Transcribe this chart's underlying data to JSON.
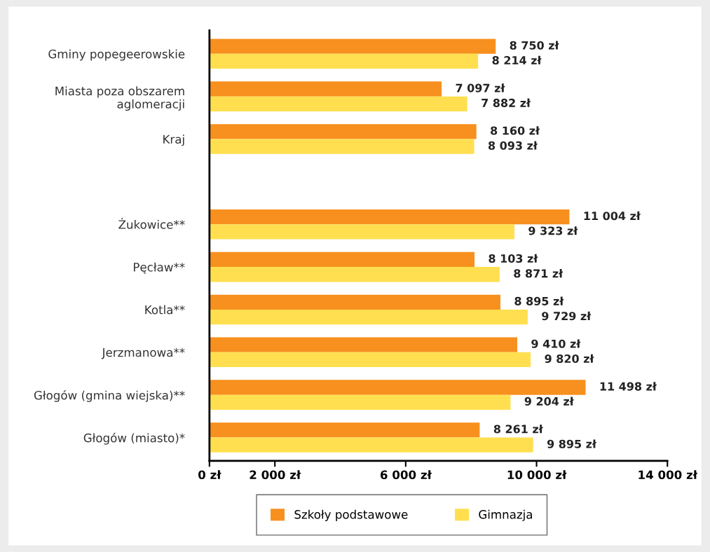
{
  "chart_data": {
    "type": "bar",
    "orientation": "horizontal",
    "categories": [
      "Gminy popegeerowskie",
      "Miasta poza obszarem\naglomeracji",
      "Kraj",
      null,
      "Żukowice**",
      "Pęcław**",
      "Kotla**",
      "Jerzmanowa**",
      "Głogów (gmina wiejska)**",
      "Głogów (miasto)*"
    ],
    "series": [
      {
        "name": "Szkoły podstawowe",
        "color": "#f7901e",
        "values": [
          8750,
          7097,
          8160,
          null,
          11004,
          8103,
          8895,
          9410,
          11498,
          8261
        ],
        "value_labels": [
          "8 750 zł",
          "7 097 zł",
          "8 160 zł",
          null,
          "11 004 zł",
          "8 103 zł",
          "8 895 zł",
          "9 410 zł",
          "11 498 zł",
          "8 261 zł"
        ]
      },
      {
        "name": "Gimnazja",
        "color": "#ffdf4f",
        "values": [
          8214,
          7882,
          8093,
          null,
          9323,
          8871,
          9729,
          9820,
          9204,
          9895
        ],
        "value_labels": [
          "8 214 zł",
          "7 882 zł",
          "8 093 zł",
          null,
          "9 323 zł",
          "8 871 zł",
          "9 729 zł",
          "9 820 zł",
          "9 204 zł",
          "9 895 zł"
        ]
      }
    ],
    "xlim": [
      0,
      14000
    ],
    "xticks": [
      {
        "value": 0,
        "label": "0 zł"
      },
      {
        "value": 2000,
        "label": "2 000 zł"
      },
      {
        "value": 6000,
        "label": "6 000 zł"
      },
      {
        "value": 10000,
        "label": "10 000 zł"
      },
      {
        "value": 14000,
        "label": "14 000 zł"
      }
    ],
    "legend": "bottom",
    "grid": false
  }
}
